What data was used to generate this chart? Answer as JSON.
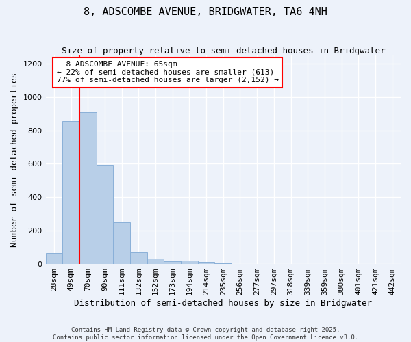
{
  "title": "8, ADSCOMBE AVENUE, BRIDGWATER, TA6 4NH",
  "subtitle": "Size of property relative to semi-detached houses in Bridgwater",
  "xlabel": "Distribution of semi-detached houses by size in Bridgwater",
  "ylabel": "Number of semi-detached properties",
  "property_label": "8 ADSCOMBE AVENUE: 65sqm",
  "smaller_pct": 22,
  "smaller_n": 613,
  "larger_pct": 77,
  "larger_n": 2152,
  "bin_labels": [
    "28sqm",
    "49sqm",
    "70sqm",
    "90sqm",
    "111sqm",
    "132sqm",
    "152sqm",
    "173sqm",
    "194sqm",
    "214sqm",
    "235sqm",
    "256sqm",
    "277sqm",
    "297sqm",
    "318sqm",
    "339sqm",
    "359sqm",
    "380sqm",
    "401sqm",
    "421sqm",
    "442sqm"
  ],
  "bar_values": [
    65,
    855,
    910,
    595,
    250,
    70,
    35,
    18,
    20,
    13,
    5,
    0,
    0,
    0,
    0,
    0,
    0,
    0,
    0,
    0,
    0
  ],
  "bar_color": "#b8cfe8",
  "bar_edge_color": "#8ab0d8",
  "red_line_index": 1.5,
  "background_color": "#edf2fa",
  "grid_color": "#ffffff",
  "ylim": [
    0,
    1250
  ],
  "yticks": [
    0,
    200,
    400,
    600,
    800,
    1000,
    1200
  ],
  "title_fontsize": 11,
  "subtitle_fontsize": 9,
  "annotation_fontsize": 8,
  "ylabel_fontsize": 9,
  "xlabel_fontsize": 9,
  "tick_fontsize": 8,
  "footer_line1": "Contains HM Land Registry data © Crown copyright and database right 2025.",
  "footer_line2": "Contains public sector information licensed under the Open Government Licence v3.0."
}
